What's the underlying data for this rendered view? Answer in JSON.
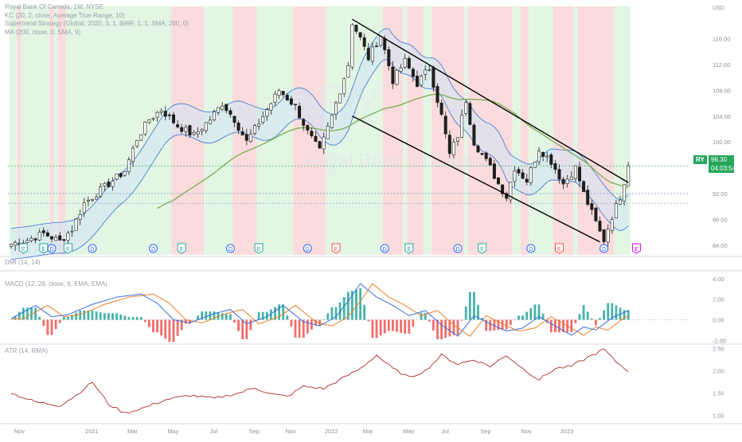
{
  "legend": {
    "title": "Royal Bank Of Canada, 1W, NYSE",
    "line2": "KC (20, 2, close, Average True Range, 10)",
    "line3": "Supertrend Strategy (Global, 2020, 3, 1, $999, 1, 1, SMA, 260, 0)",
    "line4": "MA (200, close, 0, SMA, 9)",
    "dmi": "DMI (14, 14)",
    "macd": "MACD (12, 26, close, 9, EMA, EMA)",
    "atr": "ATR (14, RMA)"
  },
  "watermark": "Royal Bank Of Canada",
  "watermark_ticker": "RY",
  "currency": "USD",
  "badge": {
    "ticker": "RY",
    "price": "96.30",
    "countdown": "04:03:54"
  },
  "colors": {
    "up": "#26a69a",
    "down": "#ef5350",
    "candle": "#1e1e1e",
    "ma200": "#7fb15a",
    "keltner": "#4a7fd6",
    "band_fill": "#cfe3f5",
    "bg_green": "#e3f6e3",
    "bg_red": "#fbdcdc",
    "trendline": "#000000",
    "macd": "#3b6fd9",
    "signal": "#ef7f29",
    "atr": "#b22a2a"
  },
  "chart_data": [
    {
      "type": "candlestick",
      "panel": "price",
      "ylim": [
        82.5,
        121
      ],
      "y_ticks": [
        "84.00",
        "88.00",
        "92.00",
        "96.00",
        "100.00",
        "104.00",
        "108.00",
        "112.00",
        "116.00"
      ],
      "x_ticks": [
        "Nov",
        "2021",
        "Mar",
        "May",
        "Jul",
        "Sep",
        "Nov",
        "2022",
        "Mar",
        "May",
        "Jul",
        "Sep",
        "Nov",
        "2023"
      ],
      "last_price": 96.3,
      "close_anchors": [
        [
          0,
          84.2
        ],
        [
          4,
          84.8
        ],
        [
          8,
          85.8
        ],
        [
          12,
          84.6
        ],
        [
          15,
          86.5
        ],
        [
          18,
          90.5
        ],
        [
          21,
          92.0
        ],
        [
          24,
          93.5
        ],
        [
          28,
          95.5
        ],
        [
          31,
          100.5
        ],
        [
          34,
          103.5
        ],
        [
          37,
          105.0
        ],
        [
          41,
          102.5
        ],
        [
          45,
          101.0
        ],
        [
          49,
          103.5
        ],
        [
          52,
          106.0
        ],
        [
          55,
          103.5
        ],
        [
          58,
          100.0
        ],
        [
          62,
          104.0
        ],
        [
          66,
          108.0
        ],
        [
          70,
          105.5
        ],
        [
          73,
          101.5
        ],
        [
          76,
          98.5
        ],
        [
          79,
          104.0
        ],
        [
          81,
          108.0
        ],
        [
          83,
          112.0
        ],
        [
          84,
          118.5
        ],
        [
          86,
          116.0
        ],
        [
          88,
          113.0
        ],
        [
          91,
          116.5
        ],
        [
          94,
          109.5
        ],
        [
          97,
          112.5
        ],
        [
          100,
          109.0
        ],
        [
          103,
          111.5
        ],
        [
          106,
          104.0
        ],
        [
          108,
          98.0
        ],
        [
          110,
          101.0
        ],
        [
          112,
          106.5
        ],
        [
          114,
          100.0
        ],
        [
          116,
          98.0
        ],
        [
          118,
          96.0
        ],
        [
          120,
          93.5
        ],
        [
          122,
          91.5
        ],
        [
          124,
          96.0
        ],
        [
          127,
          94.0
        ],
        [
          130,
          99.0
        ],
        [
          133,
          97.0
        ],
        [
          136,
          93.5
        ],
        [
          139,
          96.0
        ],
        [
          141,
          92.0
        ],
        [
          143,
          89.0
        ],
        [
          145,
          86.0
        ],
        [
          146,
          84.8
        ],
        [
          148,
          88.5
        ],
        [
          150,
          91.5
        ],
        [
          152,
          96.3
        ]
      ],
      "trendlines": [
        [
          [
            84,
            119
          ],
          [
            152,
            93.7
          ]
        ],
        [
          [
            84,
            104
          ],
          [
            145,
            84.5
          ]
        ]
      ],
      "support_levels": [
        92.0,
        90.5,
        96.3
      ],
      "event_markers": [
        {
          "label": "E",
          "index": 3,
          "kind": "earnings"
        },
        {
          "label": "E",
          "index": 8,
          "kind": "earnings"
        },
        {
          "label": "D",
          "index": 10,
          "kind": "dividend"
        },
        {
          "label": "E",
          "index": 14,
          "kind": "earnings"
        },
        {
          "label": "D",
          "index": 20,
          "kind": "dividend"
        },
        {
          "label": "D",
          "index": 35,
          "kind": "dividend"
        },
        {
          "label": "E",
          "index": 42,
          "kind": "earnings"
        },
        {
          "label": "D",
          "index": 54,
          "kind": "dividend"
        },
        {
          "label": "E",
          "index": 61,
          "kind": "earnings"
        },
        {
          "label": "D",
          "index": 73,
          "kind": "dividend"
        },
        {
          "label": "E",
          "index": 80,
          "kind": "earnings_neg"
        },
        {
          "label": "D",
          "index": 92,
          "kind": "dividend"
        },
        {
          "label": "E",
          "index": 98,
          "kind": "earnings"
        },
        {
          "label": "D",
          "index": 110,
          "kind": "dividend"
        },
        {
          "label": "E",
          "index": 116,
          "kind": "earnings"
        },
        {
          "label": "D",
          "index": 128,
          "kind": "dividend"
        },
        {
          "label": "E",
          "index": 135,
          "kind": "earnings_neg"
        },
        {
          "label": "D",
          "index": 146,
          "kind": "dividend"
        },
        {
          "label": "E",
          "index": 154,
          "kind": "earnings_future"
        }
      ]
    },
    {
      "type": "line",
      "panel": "macd",
      "ylim": [
        -2.2,
        4.6
      ],
      "y_ticks": [
        "4.00",
        "2.00",
        "0.00",
        "-2.00"
      ],
      "macd_anchors": [
        [
          0,
          0.1
        ],
        [
          6,
          1.4
        ],
        [
          10,
          0.3
        ],
        [
          14,
          0.5
        ],
        [
          20,
          1.5
        ],
        [
          26,
          2.2
        ],
        [
          32,
          2.5
        ],
        [
          36,
          1.6
        ],
        [
          40,
          0.0
        ],
        [
          44,
          -0.3
        ],
        [
          50,
          0.6
        ],
        [
          54,
          1.0
        ],
        [
          58,
          -0.4
        ],
        [
          63,
          0.3
        ],
        [
          67,
          1.4
        ],
        [
          72,
          -0.2
        ],
        [
          76,
          -0.6
        ],
        [
          80,
          0.3
        ],
        [
          83,
          1.8
        ],
        [
          86,
          3.5
        ],
        [
          90,
          2.2
        ],
        [
          94,
          1.4
        ],
        [
          98,
          0.4
        ],
        [
          102,
          0.9
        ],
        [
          106,
          -0.5
        ],
        [
          110,
          -1.6
        ],
        [
          114,
          0.4
        ],
        [
          118,
          -0.4
        ],
        [
          122,
          -1.1
        ],
        [
          126,
          -0.8
        ],
        [
          130,
          0.3
        ],
        [
          134,
          -0.6
        ],
        [
          138,
          -1.5
        ],
        [
          141,
          -0.7
        ],
        [
          144,
          -1.0
        ],
        [
          148,
          0.2
        ],
        [
          152,
          0.9
        ]
      ],
      "signal_lag": 3
    },
    {
      "type": "line",
      "panel": "atr",
      "ylim": [
        0.85,
        2.6
      ],
      "y_ticks": [
        "2.50",
        "2.00",
        "1.50",
        "1.00"
      ],
      "values_anchors": [
        [
          0,
          1.5
        ],
        [
          6,
          1.3
        ],
        [
          12,
          1.22
        ],
        [
          16,
          1.45
        ],
        [
          20,
          1.75
        ],
        [
          24,
          1.25
        ],
        [
          28,
          1.05
        ],
        [
          33,
          1.18
        ],
        [
          38,
          1.35
        ],
        [
          44,
          1.45
        ],
        [
          50,
          1.38
        ],
        [
          56,
          1.5
        ],
        [
          60,
          1.62
        ],
        [
          64,
          1.48
        ],
        [
          68,
          1.42
        ],
        [
          72,
          1.65
        ],
        [
          77,
          1.6
        ],
        [
          82,
          1.85
        ],
        [
          86,
          2.05
        ],
        [
          90,
          2.35
        ],
        [
          94,
          2.05
        ],
        [
          98,
          1.85
        ],
        [
          102,
          2.0
        ],
        [
          106,
          2.35
        ],
        [
          110,
          2.15
        ],
        [
          114,
          2.25
        ],
        [
          118,
          2.1
        ],
        [
          122,
          2.35
        ],
        [
          126,
          2.05
        ],
        [
          130,
          1.8
        ],
        [
          134,
          2.05
        ],
        [
          138,
          2.1
        ],
        [
          142,
          2.3
        ],
        [
          146,
          2.48
        ],
        [
          149,
          2.2
        ],
        [
          152,
          2.0
        ]
      ]
    }
  ]
}
